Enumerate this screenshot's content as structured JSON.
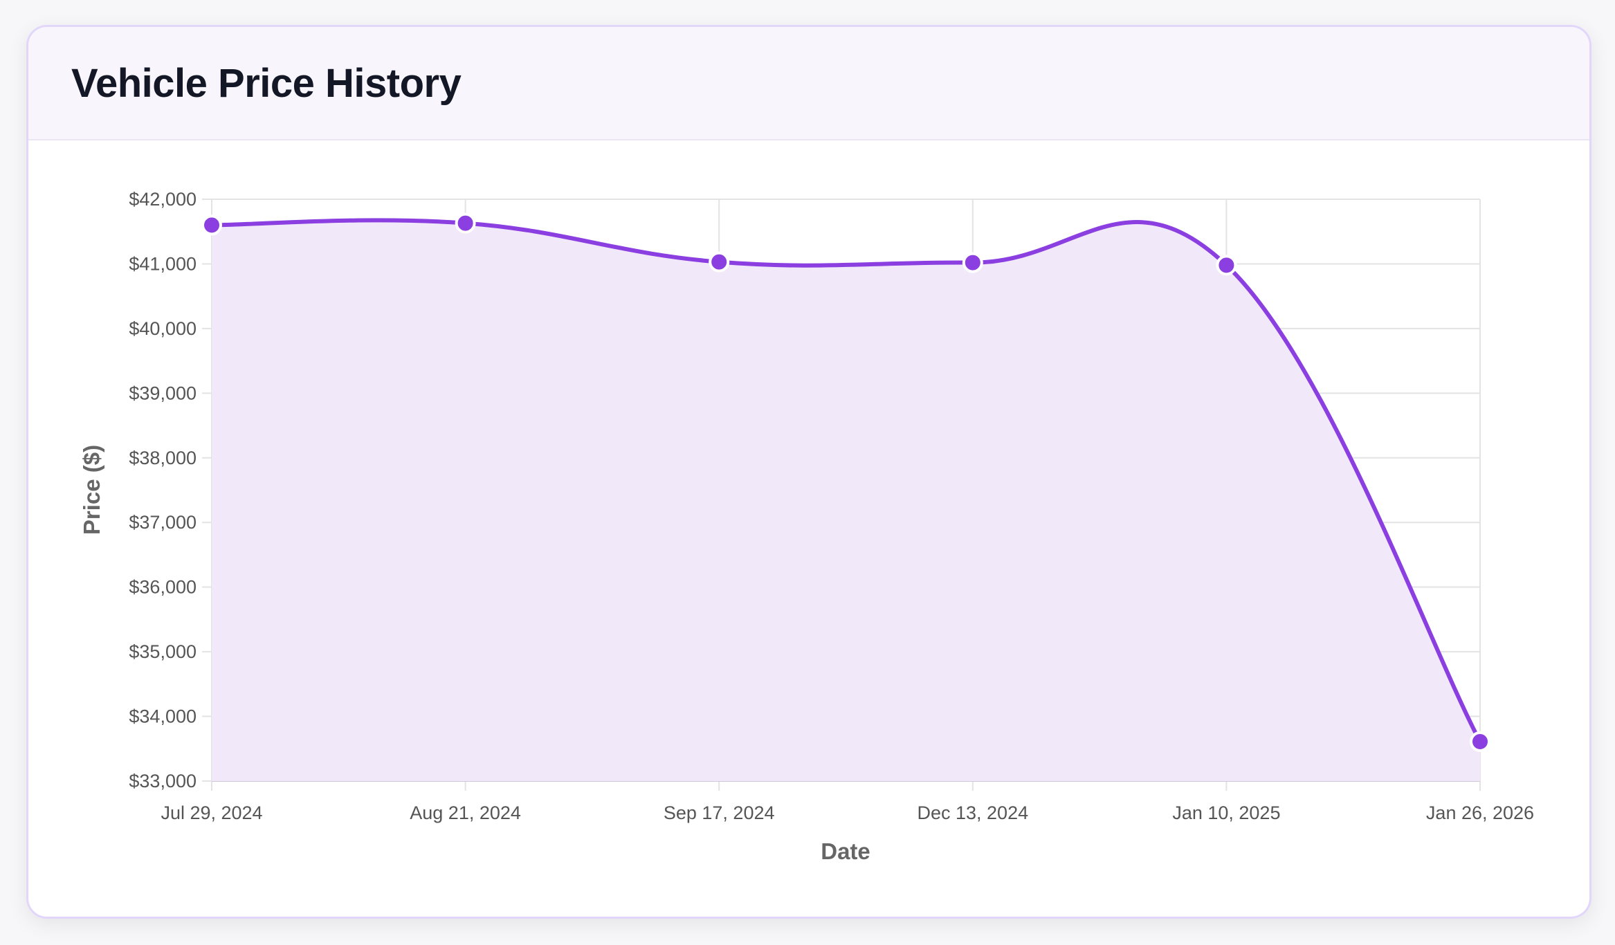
{
  "card": {
    "title": "Vehicle Price History"
  },
  "chart_data": {
    "type": "line",
    "title": "Vehicle Price History",
    "xlabel": "Date",
    "ylabel": "Price ($)",
    "categories": [
      "Jul 29, 2024",
      "Aug 21, 2024",
      "Sep 17, 2024",
      "Dec 13, 2024",
      "Jan 10, 2025",
      "Jan 26, 2026"
    ],
    "series": [
      {
        "name": "Price",
        "values": [
          41600,
          41630,
          41030,
          41020,
          40980,
          33610
        ],
        "color": "#8b3fe0",
        "fill": "#f1e8fa"
      }
    ],
    "ylim": [
      33000,
      42000
    ],
    "yticks": [
      33000,
      34000,
      35000,
      36000,
      37000,
      38000,
      39000,
      40000,
      41000,
      42000
    ],
    "ytick_labels": [
      "$33,000",
      "$34,000",
      "$35,000",
      "$36,000",
      "$37,000",
      "$38,000",
      "$39,000",
      "$40,000",
      "$41,000",
      "$42,000"
    ],
    "grid": true,
    "legend": "none"
  }
}
